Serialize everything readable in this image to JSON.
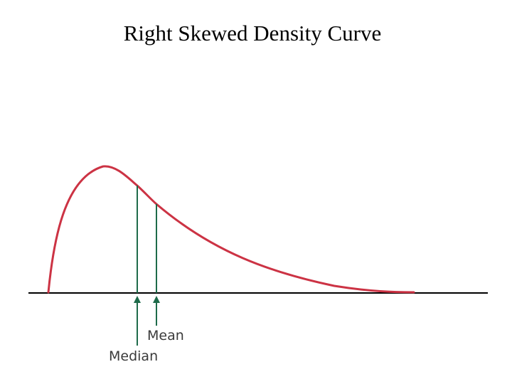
{
  "title": "Right Skewed Density Curve",
  "diagram": {
    "curve_color": "#cc3344",
    "marker_color": "#1e6b4a",
    "baseline_color": "#000000",
    "markers": {
      "median_label": "Median",
      "mean_label": "Mean"
    }
  }
}
